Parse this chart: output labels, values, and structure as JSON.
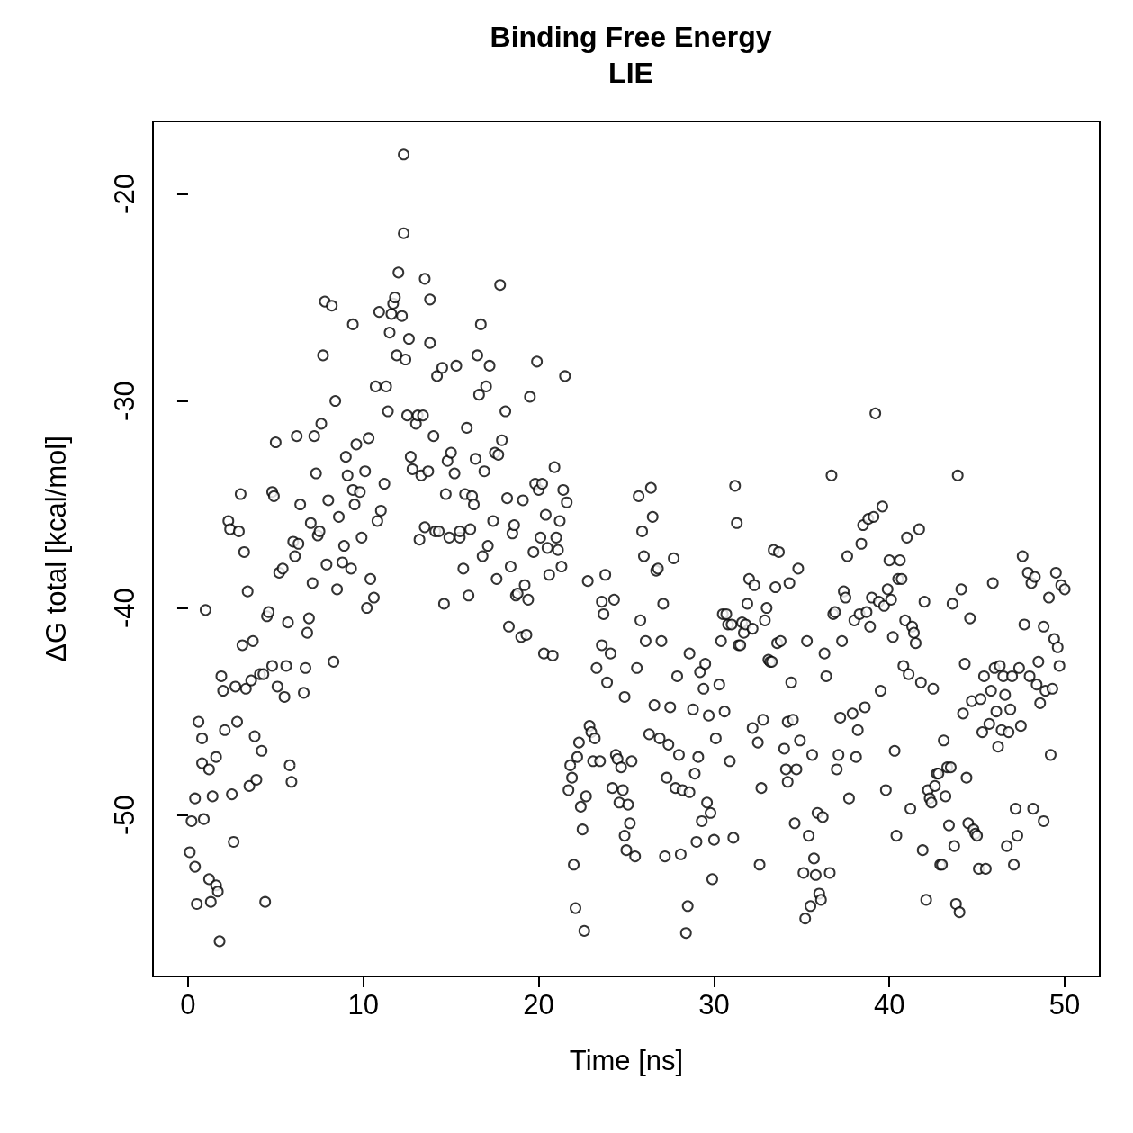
{
  "chart_data": {
    "type": "scatter",
    "title": "Binding Free Energy",
    "subtitle": "LIE",
    "xlabel": "Time [ns]",
    "ylabel": "ΔG total [kcal/mol]",
    "xlim": [
      -2,
      52
    ],
    "ylim": [
      -57.8,
      -16.5
    ],
    "xticks": [
      0,
      10,
      20,
      30,
      40,
      50
    ],
    "yticks": [
      -50,
      -40,
      -30,
      -20
    ],
    "grid": false,
    "marker": "circle",
    "series": [
      {
        "color": "#000000",
        "x": [
          0.1,
          0.2,
          0.4,
          0.4,
          0.5,
          0.6,
          0.8,
          0.8,
          0.9,
          1.0,
          1.2,
          1.2,
          1.3,
          1.4,
          1.6,
          1.6,
          1.7,
          1.8,
          1.9,
          2.0,
          2.1,
          2.3,
          2.4,
          2.5,
          2.6,
          2.7,
          2.8,
          2.9,
          3.0,
          3.1,
          3.2,
          3.3,
          3.4,
          3.5,
          3.6,
          3.7,
          3.8,
          3.9,
          4.1,
          4.2,
          4.3,
          4.4,
          4.5,
          4.6,
          4.8,
          4.8,
          4.9,
          5.0,
          5.1,
          5.2,
          5.4,
          5.5,
          5.6,
          5.7,
          5.8,
          5.9,
          6.0,
          6.1,
          6.2,
          6.3,
          6.4,
          6.6,
          6.7,
          6.8,
          6.9,
          7.0,
          7.1,
          7.2,
          7.3,
          7.4,
          7.5,
          7.6,
          7.7,
          7.8,
          7.9,
          8.0,
          8.2,
          8.3,
          8.4,
          8.5,
          8.6,
          8.8,
          8.9,
          9.0,
          9.1,
          9.3,
          9.4,
          9.4,
          9.5,
          9.6,
          9.8,
          9.9,
          10.1,
          10.2,
          10.3,
          10.4,
          10.6,
          10.7,
          10.8,
          10.9,
          11.0,
          11.2,
          11.3,
          11.4,
          11.5,
          11.6,
          11.7,
          11.8,
          11.9,
          12.0,
          12.2,
          12.3,
          12.3,
          12.4,
          12.5,
          12.6,
          12.7,
          12.8,
          13.0,
          13.1,
          13.2,
          13.3,
          13.4,
          13.5,
          13.5,
          13.7,
          13.8,
          13.8,
          14.0,
          14.1,
          14.2,
          14.3,
          14.5,
          14.6,
          14.7,
          14.8,
          14.9,
          15.0,
          15.2,
          15.3,
          15.5,
          15.5,
          15.7,
          15.8,
          15.9,
          16.0,
          16.1,
          16.2,
          16.3,
          16.4,
          16.5,
          16.6,
          16.7,
          16.8,
          16.9,
          17.0,
          17.1,
          17.2,
          17.4,
          17.5,
          17.6,
          17.7,
          17.8,
          17.9,
          18.1,
          18.2,
          18.3,
          18.4,
          18.5,
          18.6,
          18.7,
          18.8,
          19.0,
          19.1,
          19.2,
          19.3,
          19.4,
          19.5,
          19.7,
          19.8,
          19.9,
          20.0,
          20.1,
          20.2,
          20.3,
          20.4,
          20.5,
          20.6,
          20.8,
          20.9,
          21.0,
          21.1,
          21.2,
          21.3,
          21.4,
          21.5,
          21.6,
          21.7,
          21.8,
          21.9,
          22.0,
          22.1,
          22.2,
          22.3,
          22.4,
          22.5,
          22.6,
          22.7,
          22.8,
          22.9,
          23.0,
          23.1,
          23.2,
          23.3,
          23.5,
          23.6,
          23.6,
          23.7,
          23.8,
          23.9,
          24.1,
          24.2,
          24.3,
          24.4,
          24.5,
          24.6,
          24.7,
          24.8,
          24.9,
          24.9,
          25.0,
          25.1,
          25.2,
          25.3,
          25.5,
          25.6,
          25.7,
          25.8,
          25.9,
          26.0,
          26.1,
          26.3,
          26.4,
          26.5,
          26.6,
          26.7,
          26.8,
          26.9,
          27.0,
          27.1,
          27.2,
          27.3,
          27.4,
          27.5,
          27.7,
          27.8,
          27.9,
          28.0,
          28.1,
          28.2,
          28.4,
          28.5,
          28.6,
          28.6,
          28.8,
          28.9,
          29.0,
          29.1,
          29.2,
          29.3,
          29.4,
          29.5,
          29.6,
          29.7,
          29.8,
          29.9,
          30.0,
          30.1,
          30.3,
          30.4,
          30.5,
          30.6,
          30.7,
          30.8,
          30.9,
          31.0,
          31.1,
          31.2,
          31.3,
          31.4,
          31.5,
          31.6,
          31.7,
          31.8,
          31.9,
          32.0,
          32.2,
          32.2,
          32.3,
          32.5,
          32.6,
          32.7,
          32.8,
          32.9,
          33.0,
          33.1,
          33.2,
          33.3,
          33.4,
          33.5,
          33.6,
          33.7,
          33.8,
          34.0,
          34.1,
          34.2,
          34.2,
          34.3,
          34.4,
          34.5,
          34.6,
          34.7,
          34.8,
          34.9,
          35.1,
          35.2,
          35.3,
          35.4,
          35.5,
          35.6,
          35.7,
          35.8,
          35.9,
          36.0,
          36.1,
          36.2,
          36.3,
          36.4,
          36.6,
          36.7,
          36.8,
          36.9,
          37.0,
          37.1,
          37.2,
          37.3,
          37.4,
          37.5,
          37.6,
          37.7,
          37.9,
          38.0,
          38.1,
          38.2,
          38.3,
          38.4,
          38.5,
          38.6,
          38.7,
          38.8,
          38.9,
          39.0,
          39.1,
          39.2,
          39.4,
          39.5,
          39.6,
          39.7,
          39.8,
          39.9,
          40.0,
          40.1,
          40.2,
          40.3,
          40.4,
          40.5,
          40.6,
          40.7,
          40.8,
          40.9,
          41.0,
          41.1,
          41.2,
          41.3,
          41.4,
          41.5,
          41.7,
          41.8,
          41.9,
          42.0,
          42.1,
          42.2,
          42.3,
          42.4,
          42.5,
          42.6,
          42.7,
          42.8,
          42.9,
          43.0,
          43.1,
          43.2,
          43.3,
          43.4,
          43.5,
          43.6,
          43.7,
          43.8,
          43.9,
          44.0,
          44.1,
          44.2,
          44.3,
          44.4,
          44.5,
          44.6,
          44.7,
          44.8,
          44.9,
          45.0,
          45.1,
          45.2,
          45.3,
          45.4,
          45.5,
          45.7,
          45.8,
          45.9,
          46.0,
          46.1,
          46.2,
          46.3,
          46.4,
          46.5,
          46.6,
          46.7,
          46.8,
          46.9,
          47.0,
          47.1,
          47.2,
          47.3,
          47.4,
          47.5,
          47.6,
          47.7,
          47.9,
          48.0,
          48.1,
          48.2,
          48.3,
          48.4,
          48.5,
          48.6,
          48.8,
          48.8,
          48.9,
          49.1,
          49.2,
          49.3,
          49.4,
          49.5,
          49.6,
          49.7,
          49.8,
          50.0
        ],
        "values": [
          -51.8,
          -50.3,
          -52.5,
          -49.2,
          -54.3,
          -45.5,
          -47.5,
          -46.3,
          -50.2,
          -40.1,
          -47.8,
          -53.1,
          -54.2,
          -49.1,
          -47.2,
          -53.4,
          -53.7,
          -56.1,
          -43.3,
          -44.0,
          -45.9,
          -35.8,
          -36.2,
          -49.0,
          -51.3,
          -43.8,
          -45.5,
          -36.3,
          -34.5,
          -41.8,
          -37.3,
          -43.9,
          -39.2,
          -48.6,
          -43.5,
          -41.6,
          -46.2,
          -48.3,
          -43.2,
          -46.9,
          -43.2,
          -54.2,
          -40.4,
          -40.2,
          -42.8,
          -34.4,
          -34.6,
          -32.0,
          -43.8,
          -38.3,
          -38.1,
          -44.3,
          -42.8,
          -40.7,
          -47.6,
          -48.4,
          -36.8,
          -37.5,
          -31.7,
          -36.9,
          -35.0,
          -44.1,
          -42.9,
          -41.2,
          -40.5,
          -35.9,
          -38.8,
          -31.7,
          -33.5,
          -36.5,
          -36.3,
          -31.1,
          -27.8,
          -25.2,
          -37.9,
          -34.8,
          -25.4,
          -42.6,
          -30.0,
          -39.1,
          -35.6,
          -37.8,
          -37.0,
          -32.7,
          -33.6,
          -38.1,
          -34.3,
          -26.3,
          -35.0,
          -32.1,
          -34.4,
          -36.6,
          -33.4,
          -40.0,
          -31.8,
          -38.6,
          -39.5,
          -29.3,
          -35.8,
          -25.7,
          -35.3,
          -34.0,
          -29.3,
          -30.5,
          -26.7,
          -25.8,
          -25.3,
          -25.0,
          -27.8,
          -23.8,
          -25.9,
          -21.9,
          -18.1,
          -28.0,
          -30.7,
          -27.0,
          -32.7,
          -33.3,
          -31.1,
          -30.7,
          -36.7,
          -33.6,
          -30.7,
          -36.1,
          -24.1,
          -33.4,
          -27.2,
          -25.1,
          -31.7,
          -36.3,
          -28.8,
          -36.3,
          -28.4,
          -39.8,
          -34.5,
          -32.9,
          -36.6,
          -32.5,
          -33.5,
          -28.3,
          -36.6,
          -36.3,
          -38.1,
          -34.5,
          -31.3,
          -39.4,
          -36.2,
          -34.6,
          -35.0,
          -32.8,
          -27.8,
          -29.7,
          -26.3,
          -37.5,
          -33.4,
          -29.3,
          -37.0,
          -28.3,
          -35.8,
          -32.5,
          -38.6,
          -32.6,
          -24.4,
          -31.9,
          -30.5,
          -34.7,
          -40.9,
          -38.0,
          -36.4,
          -36.0,
          -39.4,
          -39.3,
          -41.4,
          -34.8,
          -38.9,
          -41.3,
          -39.6,
          -29.8,
          -37.3,
          -34.0,
          -28.1,
          -34.3,
          -36.6,
          -34.0,
          -42.2,
          -35.5,
          -37.1,
          -38.4,
          -42.3,
          -33.2,
          -36.6,
          -37.2,
          -35.8,
          -38.0,
          -34.3,
          -28.8,
          -34.9,
          -48.8,
          -47.6,
          -48.2,
          -52.4,
          -54.5,
          -47.2,
          -46.5,
          -49.6,
          -50.7,
          -55.6,
          -49.1,
          -38.7,
          -45.7,
          -46.0,
          -47.4,
          -46.3,
          -42.9,
          -47.4,
          -41.8,
          -39.7,
          -40.3,
          -38.4,
          -43.6,
          -42.2,
          -48.7,
          -39.6,
          -47.1,
          -47.3,
          -49.4,
          -47.7,
          -48.8,
          -44.3,
          -51.0,
          -51.7,
          -49.5,
          -50.4,
          -47.4,
          -52.0,
          -42.9,
          -34.6,
          -40.6,
          -36.3,
          -37.5,
          -41.6,
          -46.1,
          -34.2,
          -35.6,
          -44.7,
          -38.2,
          -38.1,
          -46.3,
          -41.6,
          -39.8,
          -52.0,
          -48.2,
          -46.6,
          -44.8,
          -37.6,
          -48.7,
          -43.3,
          -47.1,
          -51.9,
          -48.8,
          -55.7,
          -54.4,
          -48.9,
          -42.2,
          -44.9,
          -48.0,
          -51.3,
          -47.2,
          -43.1,
          -50.3,
          -43.9,
          -42.7,
          -49.4,
          -45.2,
          -49.9,
          -53.1,
          -51.2,
          -46.3,
          -43.7,
          -41.6,
          -40.3,
          -45.0,
          -40.3,
          -40.8,
          -47.4,
          -40.8,
          -51.1,
          -34.1,
          -35.9,
          -41.8,
          -41.8,
          -40.7,
          -41.2,
          -40.8,
          -39.8,
          -38.6,
          -41.0,
          -45.8,
          -38.9,
          -46.5,
          -52.4,
          -48.7,
          -45.4,
          -40.6,
          -40.0,
          -42.5,
          -42.6,
          -42.6,
          -37.2,
          -39.0,
          -41.7,
          -37.3,
          -41.6,
          -46.8,
          -47.8,
          -48.4,
          -45.5,
          -38.8,
          -43.6,
          -45.4,
          -50.4,
          -47.8,
          -38.1,
          -46.4,
          -52.8,
          -55.0,
          -41.6,
          -51.0,
          -54.4,
          -47.1,
          -52.1,
          -52.9,
          -49.9,
          -53.8,
          -54.1,
          -50.1,
          -42.2,
          -43.3,
          -52.8,
          -33.6,
          -40.3,
          -40.2,
          -47.8,
          -47.1,
          -45.3,
          -41.6,
          -39.2,
          -39.5,
          -37.5,
          -49.2,
          -45.1,
          -40.6,
          -47.2,
          -45.9,
          -40.3,
          -36.9,
          -36.0,
          -44.8,
          -40.2,
          -35.7,
          -40.9,
          -39.5,
          -35.6,
          -30.6,
          -39.7,
          -44.0,
          -35.1,
          -39.9,
          -48.8,
          -39.1,
          -37.7,
          -39.6,
          -41.4,
          -46.9,
          -51.0,
          -38.6,
          -37.7,
          -38.6,
          -42.8,
          -40.6,
          -36.6,
          -43.2,
          -49.7,
          -40.9,
          -41.2,
          -41.7,
          -36.2,
          -43.6,
          -51.7,
          -39.7,
          -54.1,
          -48.8,
          -49.2,
          -49.4,
          -43.9,
          -48.6,
          -48.0,
          -48.0,
          -52.4,
          -52.4,
          -46.4,
          -49.1,
          -47.7,
          -50.5,
          -47.7,
          -39.8,
          -51.5,
          -54.3,
          -33.6,
          -54.7,
          -39.1,
          -45.1,
          -42.7,
          -48.2,
          -50.4,
          -40.5,
          -44.5,
          -50.7,
          -50.9,
          -51.0,
          -52.6,
          -44.4,
          -46.0,
          -43.3,
          -52.6,
          -45.6,
          -44.0,
          -38.8,
          -42.9,
          -45.0,
          -46.7,
          -42.8,
          -45.9,
          -43.3,
          -44.2,
          -51.5,
          -46.0,
          -44.9,
          -43.3,
          -52.4,
          -49.7,
          -51.0,
          -42.9,
          -45.7,
          -37.5,
          -40.8,
          -38.3,
          -43.3,
          -38.8,
          -49.7,
          -38.5,
          -43.7,
          -42.6,
          -44.6,
          -50.3,
          -40.9,
          -44.0,
          -39.5,
          -47.1,
          -43.9,
          -41.5,
          -38.3,
          -41.9,
          -42.8,
          -38.9,
          -39.1
        ]
      }
    ]
  }
}
